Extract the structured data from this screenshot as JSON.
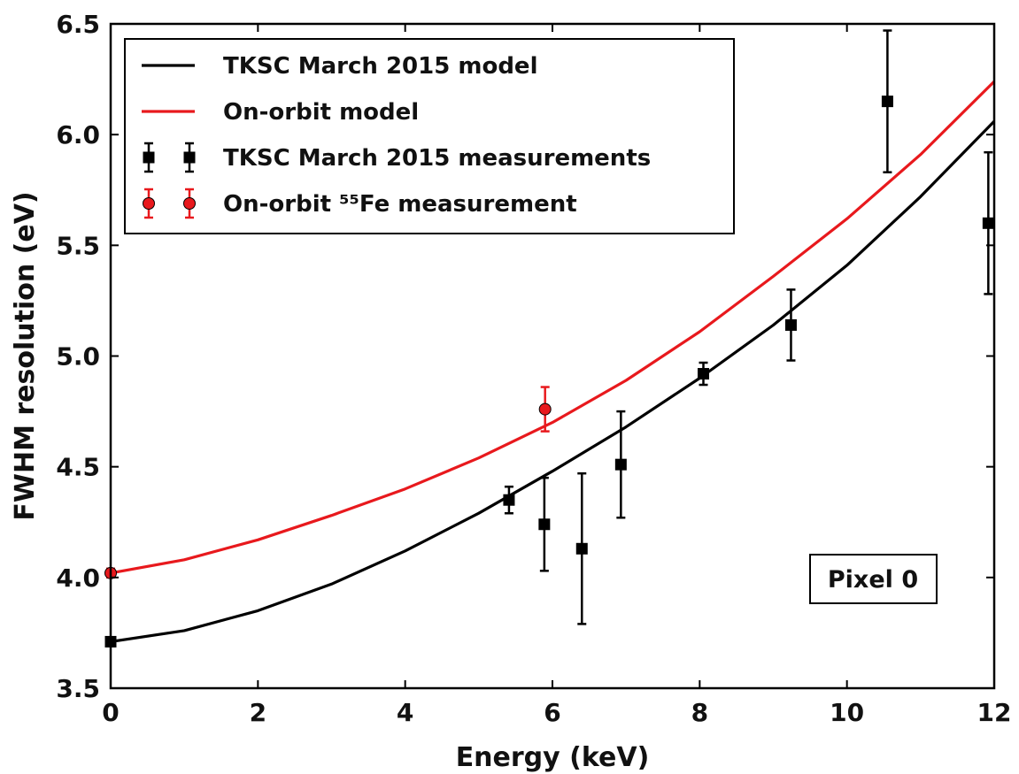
{
  "chart_data": {
    "type": "scatter",
    "xlabel": "Energy (keV)",
    "ylabel": "FWHM resolution (eV)",
    "xlim": [
      0,
      12
    ],
    "ylim": [
      3.5,
      6.5
    ],
    "x_ticks": [
      "0",
      "2",
      "4",
      "6",
      "8",
      "10",
      "12"
    ],
    "y_ticks": [
      "3.5",
      "4.0",
      "4.5",
      "5.0",
      "5.5",
      "6.0",
      "6.5"
    ],
    "grid": false,
    "legend_position": "top-left",
    "annotation": "Pixel 0",
    "series": [
      {
        "name": "TKSC March 2015 model",
        "kind": "line",
        "color": "#000000",
        "x": [
          0,
          1,
          2,
          3,
          4,
          5,
          6,
          7,
          8,
          9,
          10,
          11,
          12
        ],
        "y": [
          3.71,
          3.76,
          3.85,
          3.97,
          4.12,
          4.29,
          4.48,
          4.68,
          4.9,
          5.14,
          5.41,
          5.72,
          6.06
        ]
      },
      {
        "name": "On-orbit model",
        "kind": "line",
        "color": "#e8191d",
        "x": [
          0,
          1,
          2,
          3,
          4,
          5,
          6,
          7,
          8,
          9,
          10,
          11,
          12
        ],
        "y": [
          4.02,
          4.08,
          4.17,
          4.28,
          4.4,
          4.54,
          4.7,
          4.89,
          5.11,
          5.36,
          5.62,
          5.91,
          6.24
        ]
      },
      {
        "name": "TKSC March 2015 measurements",
        "kind": "errorbar",
        "marker": "square",
        "color": "#000000",
        "x": [
          0.0,
          5.41,
          5.89,
          6.4,
          6.93,
          8.05,
          9.24,
          10.55,
          11.92
        ],
        "y": [
          3.71,
          4.35,
          4.24,
          4.13,
          4.51,
          4.92,
          5.14,
          6.15,
          5.6
        ],
        "yerr": [
          0.02,
          0.06,
          0.21,
          0.34,
          0.24,
          0.05,
          0.16,
          0.32,
          0.32
        ]
      },
      {
        "name": "On-orbit ⁵⁵Fe measurement",
        "kind": "errorbar",
        "marker": "circle",
        "color": "#e8191d",
        "x": [
          0.0,
          5.9
        ],
        "y": [
          4.02,
          4.76
        ],
        "yerr": [
          0.02,
          0.1
        ]
      }
    ]
  }
}
